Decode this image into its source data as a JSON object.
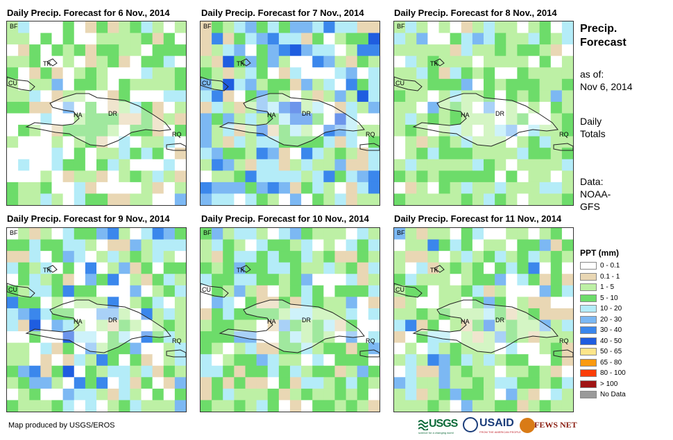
{
  "panels": [
    {
      "title": "Daily Precip. Forecast for 6 Nov., 2014"
    },
    {
      "title": "Daily Precip. Forecast for 7 Nov., 2014"
    },
    {
      "title": "Daily Precip. Forecast for 8 Nov., 2014"
    },
    {
      "title": "Daily Precip. Forecast for 9 Nov., 2014"
    },
    {
      "title": "Daily Precip. Forecast for 10 Nov., 2014"
    },
    {
      "title": "Daily Precip. Forecast for 11 Nov., 2014"
    }
  ],
  "map_labels": {
    "bf": "BF",
    "tk": "TK",
    "cu": "CU",
    "ha": "HA",
    "dr": "DR",
    "rq": "RQ"
  },
  "sidebar": {
    "heading_line1": "Precip.",
    "heading_line2": "Forecast",
    "asof_line1": "as of:",
    "asof_line2": "Nov 6, 2014",
    "totals_line1": "Daily",
    "totals_line2": "Totals",
    "data_line1": "Data:",
    "data_line2": "NOAA-",
    "data_line3": "GFS"
  },
  "legend": {
    "title": "PPT (mm)",
    "items": [
      {
        "label": "0 - 0.1",
        "color": "#ffffff"
      },
      {
        "label": "0.1 - 1",
        "color": "#e9d7b4"
      },
      {
        "label": "1 - 5",
        "color": "#bdf0a5"
      },
      {
        "label": "5 - 10",
        "color": "#6ddc6a"
      },
      {
        "label": "10 - 20",
        "color": "#b4ecf8"
      },
      {
        "label": "20 - 30",
        "color": "#7cb8f3"
      },
      {
        "label": "30 - 40",
        "color": "#3b87ec"
      },
      {
        "label": "40 - 50",
        "color": "#1f5de0"
      },
      {
        "label": "50 - 65",
        "color": "#fde58a"
      },
      {
        "label": "65 - 80",
        "color": "#fb9a10"
      },
      {
        "label": "80 - 100",
        "color": "#fb3d07"
      },
      {
        "label": "> 100",
        "color": "#a01515"
      },
      {
        "label": "No Data",
        "color": "#9a9a9a"
      }
    ]
  },
  "credit": "Map produced by USGS/EROS",
  "logos": {
    "usgs": "USGS",
    "usgs_tagline": "science for a changing world",
    "usaid": "USAID",
    "usaid_tagline": "FROM THE AMERICAN PEOPLE",
    "fewsnet": "FEWS NET"
  }
}
